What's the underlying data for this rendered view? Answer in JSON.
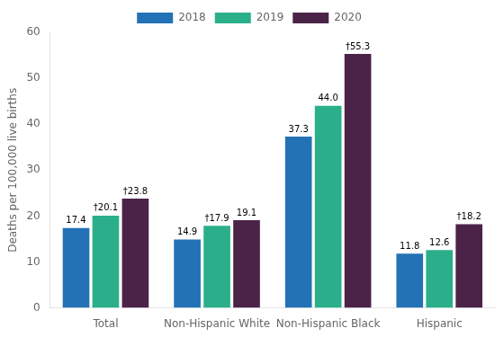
{
  "chart_data": {
    "type": "bar",
    "categories": [
      "Total",
      "Non-Hispanic White",
      "Non-Hispanic Black",
      "Hispanic"
    ],
    "series": [
      {
        "name": "2018",
        "color": "#2272B5",
        "values": [
          17.4,
          14.9,
          37.3,
          11.8
        ],
        "value_labels": [
          "17.4",
          "14.9",
          "37.3",
          "11.8"
        ]
      },
      {
        "name": "2019",
        "color": "#2AAF8A",
        "values": [
          20.1,
          17.9,
          44.0,
          12.6
        ],
        "value_labels": [
          "†20.1",
          "†17.9",
          "44.0",
          "12.6"
        ]
      },
      {
        "name": "2020",
        "color": "#4B2349",
        "values": [
          23.8,
          19.1,
          55.3,
          18.2
        ],
        "value_labels": [
          "†23.8",
          "19.1",
          "†55.3",
          "†18.2"
        ]
      }
    ],
    "ylabel": "Deaths per 100,000 live births",
    "ylim": [
      0,
      60
    ],
    "yticks": [
      0,
      10,
      20,
      30,
      40,
      50,
      60
    ],
    "grid": false,
    "legend": "top",
    "data_labels": true
  }
}
